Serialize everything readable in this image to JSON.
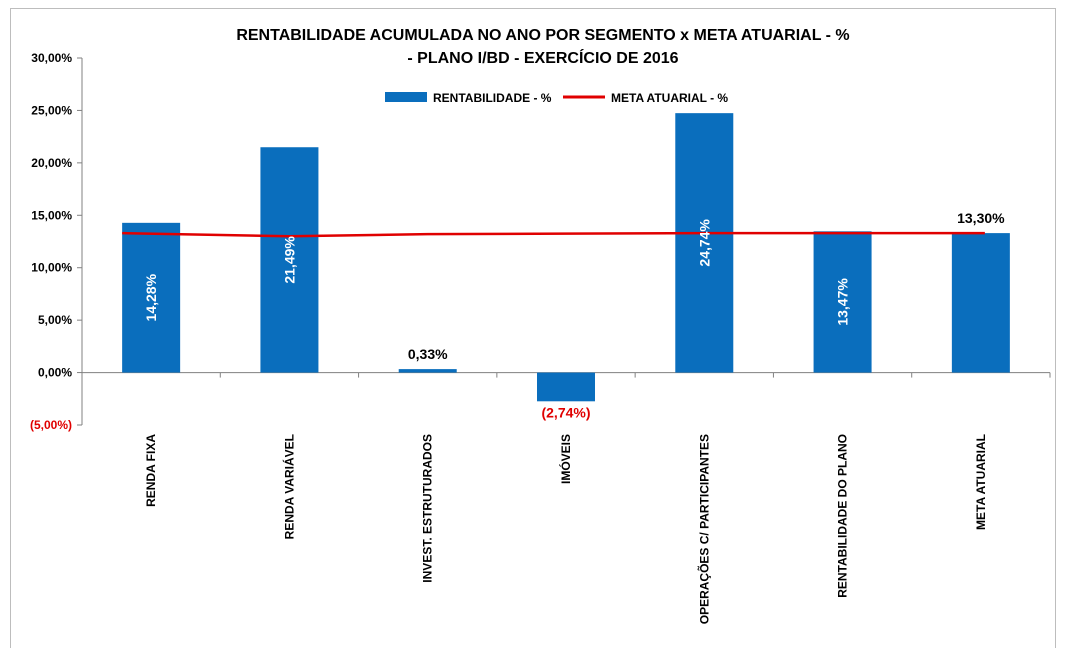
{
  "chart_data": {
    "type": "bar",
    "title": [
      "RENTABILIDADE  ACUMULADA NO ANO POR SEGMENTO x META ATUARIAL - %",
      "- PLANO I/BD - EXERCÍCIO  DE 2016"
    ],
    "categories": [
      "RENDA FIXA",
      "RENDA VARIÁVEL",
      "INVEST. ESTRUTURADOS",
      "IMÓVEIS",
      "OPERAÇÕES C/ PARTICIPANTES",
      "RENTABILIDADE DO PLANO",
      "META ATUARIAL"
    ],
    "series": [
      {
        "name": "RENTABILIDADE - %",
        "type": "bar",
        "color": "#0a6ebd",
        "values": [
          14.28,
          21.49,
          0.33,
          -2.74,
          24.74,
          13.47,
          13.3
        ],
        "labels": [
          "14,28%",
          "21,49%",
          "0,33%",
          "(2,74%)",
          "24,74%",
          "13,47%",
          "13,30%"
        ]
      },
      {
        "name": "META ATUARIAL - %",
        "type": "line",
        "color": "#e00000",
        "values": [
          13.3,
          13.0,
          13.2,
          13.25,
          13.3,
          13.3,
          13.3
        ]
      }
    ],
    "ylim": [
      -5,
      30
    ],
    "yticks": [
      30,
      25,
      20,
      15,
      10,
      5,
      0,
      -5
    ],
    "ytick_labels": [
      "30,00%",
      "25,00%",
      "20,00%",
      "15,00%",
      "10,00%",
      "5,00%",
      "0,00%",
      "(5,00%)"
    ],
    "legend": "top-center",
    "grid": false
  }
}
